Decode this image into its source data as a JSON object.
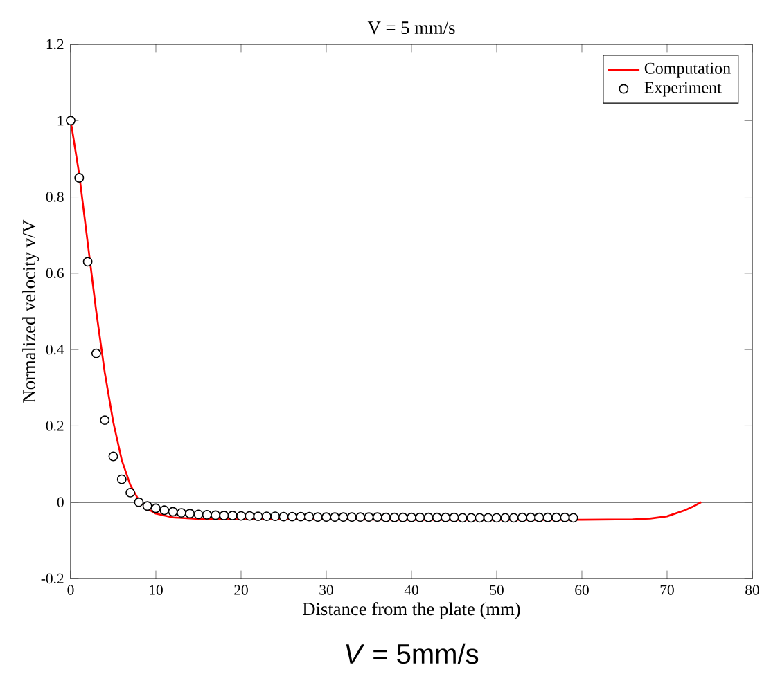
{
  "chart_data": {
    "type": "line",
    "title": "V = 5 mm/s",
    "xlabel": "Distance from the plate (mm)",
    "ylabel": "Normalized velocity v/V",
    "xlim": [
      0,
      80
    ],
    "xticks": [
      0,
      10,
      20,
      30,
      40,
      50,
      60,
      70,
      80
    ],
    "ylim": [
      -0.2,
      1.2
    ],
    "yticks": [
      -0.2,
      0,
      0.2,
      0.4,
      0.6,
      0.8,
      1,
      1.2
    ],
    "grid": false,
    "legend": "top right",
    "ref_lines": [
      {
        "axis": "y",
        "value": 0,
        "color": "#000000"
      }
    ],
    "annotations": [
      "*V* = 5mm/s"
    ],
    "series": [
      {
        "name": "Computation",
        "color": "#ff0000",
        "line_style": "solid",
        "marker": "none",
        "x": [
          0,
          1,
          2,
          3,
          4,
          5,
          6,
          7,
          8,
          9,
          10,
          12,
          15,
          20,
          30,
          40,
          50,
          60,
          66,
          68,
          70,
          72,
          73,
          74
        ],
        "values": [
          1.0,
          0.86,
          0.68,
          0.5,
          0.34,
          0.21,
          0.11,
          0.045,
          0.005,
          -0.017,
          -0.03,
          -0.04,
          -0.044,
          -0.045,
          -0.045,
          -0.046,
          -0.046,
          -0.046,
          -0.045,
          -0.043,
          -0.037,
          -0.022,
          -0.012,
          0
        ]
      },
      {
        "name": "Experiment",
        "type": "scatter",
        "color": "#000000",
        "marker": "circle",
        "x": [
          0,
          1,
          2,
          3,
          4,
          5,
          6,
          7,
          8,
          9,
          10,
          11,
          12,
          13,
          14,
          15,
          16,
          17,
          18,
          19,
          20,
          21,
          22,
          23,
          24,
          25,
          26,
          27,
          28,
          29,
          30,
          31,
          32,
          33,
          34,
          35,
          36,
          37,
          38,
          39,
          40,
          41,
          42,
          43,
          44,
          45,
          46,
          47,
          48,
          49,
          50,
          51,
          52,
          53,
          54,
          55,
          56,
          57,
          58,
          59
        ],
        "values": [
          1.0,
          0.85,
          0.63,
          0.39,
          0.215,
          0.12,
          0.06,
          0.025,
          0.0,
          -0.01,
          -0.016,
          -0.021,
          -0.025,
          -0.028,
          -0.03,
          -0.032,
          -0.033,
          -0.034,
          -0.035,
          -0.035,
          -0.036,
          -0.036,
          -0.037,
          -0.037,
          -0.037,
          -0.038,
          -0.038,
          -0.038,
          -0.038,
          -0.039,
          -0.039,
          -0.039,
          -0.039,
          -0.039,
          -0.039,
          -0.039,
          -0.039,
          -0.04,
          -0.04,
          -0.04,
          -0.04,
          -0.04,
          -0.04,
          -0.04,
          -0.04,
          -0.04,
          -0.041,
          -0.041,
          -0.041,
          -0.041,
          -0.041,
          -0.041,
          -0.041,
          -0.04,
          -0.04,
          -0.04,
          -0.04,
          -0.04,
          -0.04,
          -0.041
        ]
      }
    ]
  }
}
